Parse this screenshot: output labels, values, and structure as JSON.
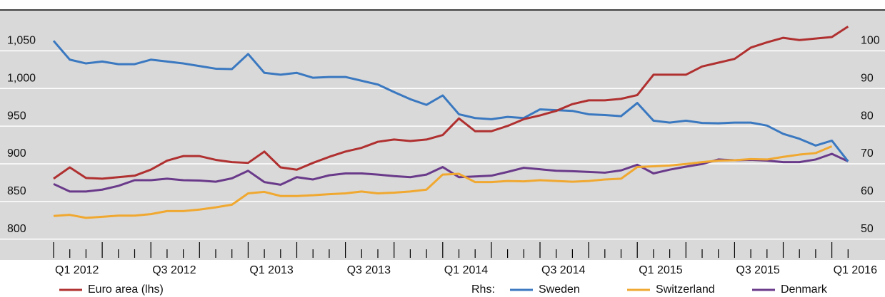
{
  "chart_data": {
    "type": "line",
    "categories": [
      null,
      "Q1 2012",
      null,
      null,
      null,
      null,
      null,
      "Q3 2012",
      null,
      null,
      null,
      null,
      null,
      "Q1 2013",
      null,
      null,
      null,
      null,
      null,
      "Q3 2013",
      null,
      null,
      null,
      null,
      null,
      "Q1 2014",
      null,
      null,
      null,
      null,
      null,
      "Q3 2014",
      null,
      null,
      null,
      null,
      null,
      "Q1 2015",
      null,
      null,
      null,
      null,
      null,
      "Q3 2015",
      null,
      null,
      null,
      null,
      null,
      "Q1 2016"
    ],
    "ylim": [
      787.5,
      1090
    ],
    "yticks": [
      800,
      850,
      900,
      950,
      {
        "value": 1000,
        "label": "1,000"
      },
      {
        "value": 1050,
        "label": "1,050"
      }
    ],
    "y2lim": [
      47.5,
      108
    ],
    "y2ticks": [
      50,
      60,
      70,
      80,
      90,
      100
    ],
    "grid": true,
    "legend_rhs_label": "Rhs:",
    "series": [
      {
        "name": "Euro area (lhs)",
        "color": "#b03030",
        "values": [
          867,
          882,
          868,
          867,
          869,
          871,
          879,
          891,
          897,
          897,
          892,
          889,
          888,
          903,
          882,
          879,
          888,
          896,
          903,
          908,
          916,
          919,
          917,
          919,
          925,
          947,
          930,
          930,
          937,
          946,
          951,
          957,
          966,
          971,
          971,
          973,
          978,
          1005,
          1005,
          1005,
          1016,
          1021,
          1026,
          1041,
          1048,
          1054,
          1051,
          1053,
          1055,
          1069
        ]
      },
      {
        "name": "Sweden",
        "color": "#3a78c0",
        "axis": "y2",
        "values": [
          100,
          95,
          94,
          94.5,
          93.8,
          93.8,
          95,
          94.5,
          94,
          93.3,
          92.6,
          92.5,
          96.5,
          91.5,
          91,
          91.5,
          90.2,
          90.4,
          90.4,
          89.4,
          88.4,
          86.4,
          84.5,
          83,
          85.5,
          80.5,
          79.5,
          79.2,
          79.8,
          79.5,
          81.8,
          81.6,
          81.4,
          80.5,
          80.3,
          80,
          83.5,
          78.8,
          78.3,
          78.8,
          78.2,
          78.1,
          78.3,
          78.3,
          77.5,
          75.3,
          74,
          72.2,
          73.5,
          68
        ]
      },
      {
        "name": "Switzerland",
        "color": "#f0a830",
        "axis": "y2",
        "values": [
          53.5,
          53.8,
          53,
          53.3,
          53.6,
          53.6,
          54,
          54.8,
          54.8,
          55.2,
          55.8,
          56.5,
          59.5,
          59.9,
          58.8,
          58.8,
          59,
          59.3,
          59.5,
          60,
          59.5,
          59.7,
          60,
          60.5,
          64.5,
          64.7,
          62.5,
          62.5,
          62.8,
          62.7,
          63,
          62.8,
          62.6,
          62.8,
          63.2,
          63.4,
          66.5,
          66.7,
          66.9,
          67.3,
          67.8,
          68.2,
          68.3,
          68.6,
          68.5,
          69.2,
          69.8,
          70.2,
          72,
          null
        ]
      },
      {
        "name": "Denmark",
        "color": "#6a3a8a",
        "axis": "y2",
        "values": [
          62,
          60,
          60,
          60.5,
          61.5,
          63,
          63,
          63.4,
          63,
          62.9,
          62.6,
          63.5,
          65.5,
          62.5,
          61.8,
          63.8,
          63.2,
          64.3,
          64.8,
          64.8,
          64.5,
          64.1,
          63.8,
          64.5,
          66.5,
          63.8,
          64,
          64.2,
          65.2,
          66.3,
          65.9,
          65.5,
          65.4,
          65.2,
          65,
          65.6,
          67.1,
          64.8,
          65.8,
          66.6,
          67.3,
          68.5,
          68.3,
          68.4,
          68.2,
          67.8,
          67.8,
          68.5,
          70,
          68
        ]
      }
    ]
  }
}
